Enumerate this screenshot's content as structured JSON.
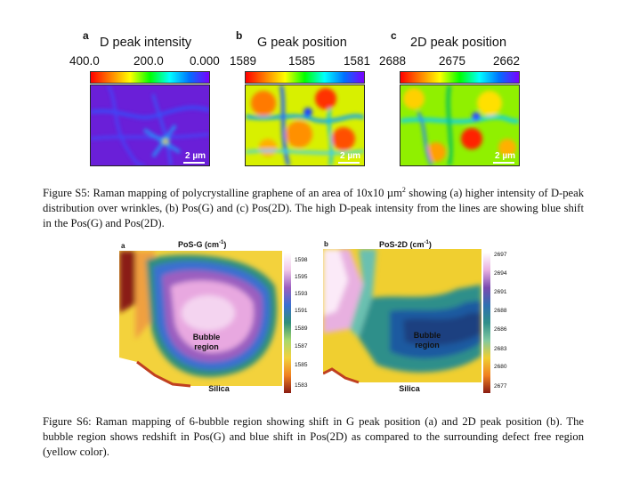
{
  "figure_s5": {
    "panels": [
      {
        "letter": "a",
        "title": "D peak intensity",
        "scale": [
          "400.0",
          "200.0",
          "0.000"
        ],
        "scalebar": "2 µm"
      },
      {
        "letter": "b",
        "title": "G peak position",
        "scale": [
          "1589",
          "1585",
          "1581"
        ],
        "scalebar": "2 µm"
      },
      {
        "letter": "c",
        "title": "2D peak position",
        "scale": [
          "2688",
          "2675",
          "2662"
        ],
        "scalebar": "2 µm"
      }
    ],
    "caption_parts": [
      "Figure S5: Raman mapping of polycrystalline graphene of an area of 10x10 µm",
      "2",
      " showing (a) higher intensity of D-peak distribution over wrinkles, (b) Pos(G) and (c) Pos(2D). The high D-peak intensity from the lines are showing blue shift in the Pos(G) and Pos(2D)."
    ]
  },
  "figure_s6": {
    "panels": [
      {
        "letter": "a",
        "title_main": "PoS-G (cm",
        "title_sup": "-1",
        "title_end": ")",
        "ticks": [
          "1598",
          "1595",
          "1593",
          "1591",
          "1589",
          "1587",
          "1585",
          "1583"
        ],
        "region_line1": "Bubble",
        "region_line2": "region",
        "substrate": "Silica"
      },
      {
        "letter": "b",
        "title_main": "PoS-2D (cm",
        "title_sup": "-1",
        "title_end": ")",
        "ticks": [
          "2697",
          "2694",
          "2691",
          "2688",
          "2686",
          "2683",
          "2680",
          "2677"
        ],
        "region_line1": "Bubble",
        "region_line2": "region",
        "substrate": "Silica"
      }
    ],
    "caption": "Figure S6: Raman mapping of 6-bubble region showing shift in G peak position (a) and 2D peak position (b). The bubble region shows redshift in Pos(G) and blue shift in Pos(2D) as compared to the surrounding defect free region (yellow color)."
  }
}
